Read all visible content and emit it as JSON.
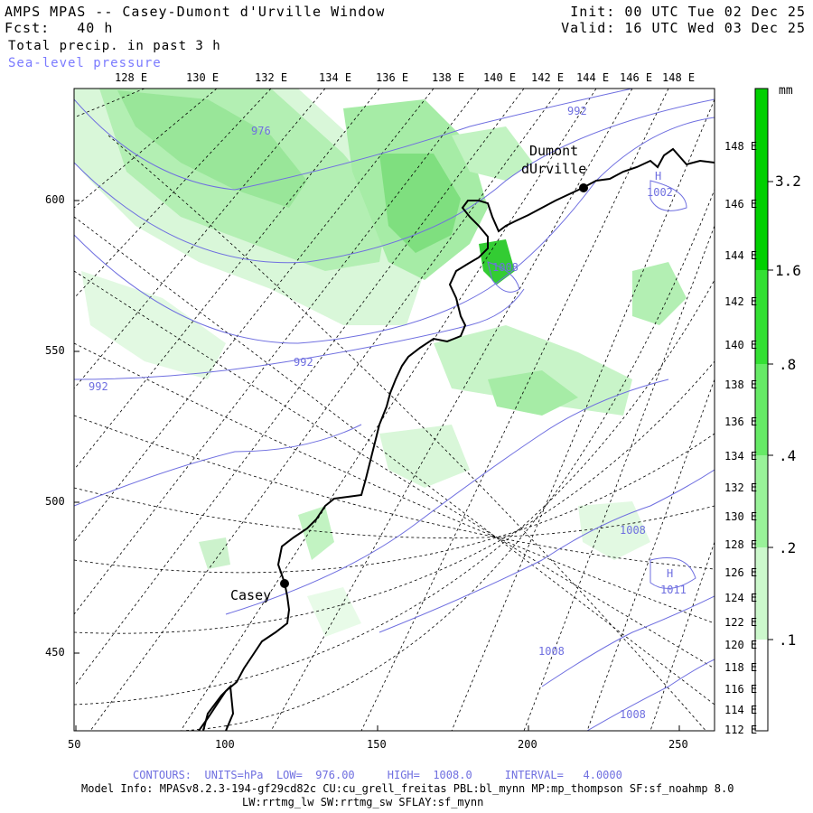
{
  "header": {
    "title": "AMPS MPAS -- Casey-Dumont d'Urville Window",
    "fcst": "Fcst:   40 h",
    "field1": "Total precip. in past 3 h",
    "field2": "Sea-level pressure",
    "init": "Init: 00 UTC Tue 02 Dec 25",
    "valid": "Valid: 16 UTC Wed 03 Dec 25"
  },
  "axes": {
    "bottom_ticks": [
      "50",
      "100",
      "150",
      "200",
      "250"
    ],
    "left_ticks": [
      "600",
      "550",
      "500",
      "450"
    ],
    "top_lon_labels": [
      "128 E",
      "130 E",
      "132 E",
      "134 E",
      "136 E",
      "138 E",
      "140 E",
      "142 E",
      "144 E",
      "146 E",
      "148 E"
    ],
    "right_lon_labels": [
      "148 E",
      "146 E",
      "144 E",
      "142 E",
      "140 E",
      "138 E",
      "136 E",
      "134 E",
      "132 E",
      "130 E",
      "128 E",
      "126 E",
      "124 E",
      "122 E",
      "120 E",
      "118 E",
      "116 E",
      "114 E",
      "112 E"
    ]
  },
  "places": {
    "dumont_line1": "Dumont",
    "dumont_line2": "dUrville",
    "casey": "Casey"
  },
  "contour_labels": [
    "976",
    "992",
    "992",
    "992",
    "1008",
    "1008",
    "1008",
    "1008"
  ],
  "highs": [
    "H",
    "1002",
    "H",
    "1011"
  ],
  "colorbar": {
    "units": "mm",
    "labels": [
      "3.2",
      "1.6",
      ".8",
      ".4",
      ".2",
      ".1"
    ],
    "colors": [
      "#00d000",
      "#33e033",
      "#66ea66",
      "#99f299",
      "#ccf8cc",
      "#eafcea"
    ]
  },
  "footer": {
    "contours": "CONTOURS:  UNITS=hPa  LOW=  976.00     HIGH=  1008.0     INTERVAL=   4.0000",
    "model_info": "Model Info: MPASv8.2.3-194-gf29cd82c CU:cu_grell_freitas PBL:bl_mynn MP:mp_thompson SF:sf_noahmp 8.0",
    "model_info2": "LW:rrtmg_lw SW:rrtmg_sw SFLAY:sf_mynn"
  }
}
